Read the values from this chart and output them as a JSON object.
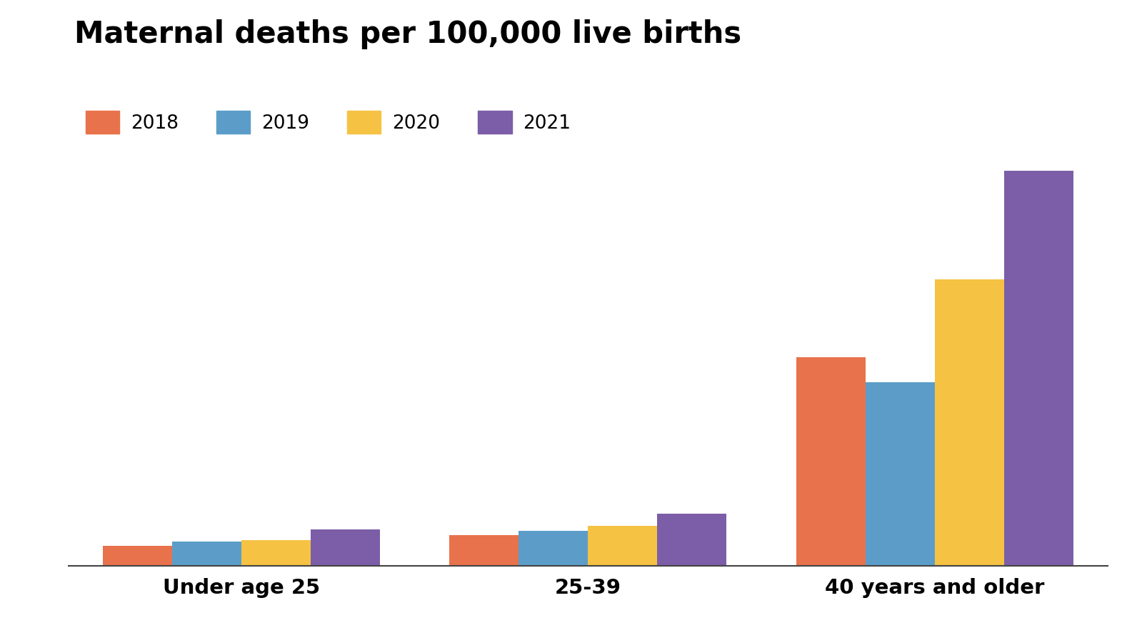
{
  "title": "Maternal deaths per 100,000 live births",
  "categories": [
    "Under age 25",
    "25-39",
    "40 years and older"
  ],
  "years": [
    "2018",
    "2019",
    "2020",
    "2021"
  ],
  "values": {
    "2018": [
      13.5,
      20.4,
      138.5
    ],
    "2019": [
      16.0,
      23.0,
      122.0
    ],
    "2020": [
      17.0,
      26.5,
      190.0
    ],
    "2021": [
      24.0,
      34.5,
      262.0
    ]
  },
  "colors": {
    "2018": "#E8724B",
    "2019": "#5B9DC8",
    "2020": "#F5C244",
    "2021": "#7B5EA7"
  },
  "background_color": "#FFFFFF",
  "title_fontsize": 30,
  "legend_fontsize": 19,
  "tick_fontsize": 21,
  "bar_width": 0.2,
  "ylim": [
    0,
    290
  ]
}
